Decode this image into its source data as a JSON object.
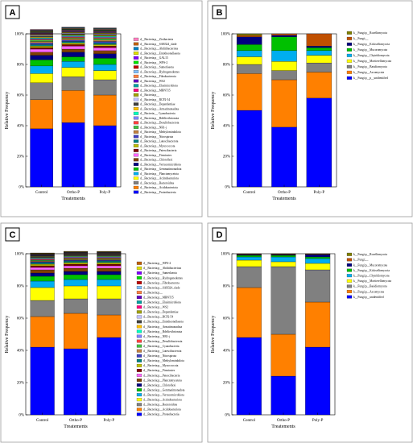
{
  "chart_data": [
    {
      "panel": "A",
      "type": "bar",
      "stacked": true,
      "categories": [
        "Control",
        "Ortho-P",
        "Poly-P"
      ],
      "xlabel": "Treatements",
      "ylabel": "Relative Frequency",
      "ylim": [
        0,
        100
      ],
      "yticks": [
        "0%",
        "20%",
        "40%",
        "60%",
        "80%",
        "100%"
      ],
      "legend_position": "right",
      "series": [
        {
          "name": "d__Bacteria;p__Proteobacteria",
          "color": "#0000ff",
          "values": [
            38,
            42,
            40
          ]
        },
        {
          "name": "d__Bacteria;p__Acidobacteriota",
          "color": "#ff8000",
          "values": [
            19,
            21,
            20
          ]
        },
        {
          "name": "d__Bacteria;p__Bacteroidota",
          "color": "#808080",
          "values": [
            11,
            9,
            10
          ]
        },
        {
          "name": "d__Bacteria;p__Actinobacteriota",
          "color": "#ffff00",
          "values": [
            6,
            6,
            6
          ]
        },
        {
          "name": "d__Bacteria;p__Planctomycetota",
          "color": "#00aeef",
          "values": [
            5,
            4,
            4
          ]
        },
        {
          "name": "d__Bacteria;p__Gemmatimonadota",
          "color": "#00c000",
          "values": [
            4,
            3,
            4
          ]
        },
        {
          "name": "d__Bacteria;p__Verrucomicrobiota",
          "color": "#000080",
          "values": [
            3,
            3,
            3
          ]
        },
        {
          "name": "d__Bacteria;p__Chloroflexi",
          "color": "#804000",
          "values": [
            2,
            2,
            2
          ]
        },
        {
          "name": "d__Bacteria;p__Firmicutes",
          "color": "#ff66ff",
          "values": [
            2,
            2,
            2
          ]
        },
        {
          "name": "d__Bacteria;p__Patescibacteria",
          "color": "#800000",
          "values": [
            1,
            1,
            1
          ]
        },
        {
          "name": "d__Bacteria;p__Myxococcota",
          "color": "#c0c000",
          "values": [
            1,
            1,
            1
          ]
        },
        {
          "name": "d__Bacteria;p__Latescibacterota",
          "color": "#008080",
          "values": [
            1,
            1,
            1
          ]
        },
        {
          "name": "d__Bacteria;p__Nitrospirota",
          "color": "#4040c0",
          "values": [
            1,
            1,
            1
          ]
        },
        {
          "name": "d__Bacteria;p__Methylomirabilota",
          "color": "#c08040",
          "values": [
            1,
            1,
            1
          ]
        },
        {
          "name": "d__Bacteria;p__NB1-j",
          "color": "#40c040",
          "values": [
            1,
            0.5,
            1
          ]
        },
        {
          "name": "d__Bacteria;p__Desulfobacterota",
          "color": "#ff4040",
          "values": [
            0.5,
            0.5,
            0.5
          ]
        },
        {
          "name": "d__Bacteria;p__Bdellovibrionota",
          "color": "#8080ff",
          "values": [
            0.5,
            0.5,
            0.5
          ]
        },
        {
          "name": "d__Bacteria;__ Cyanobacteria",
          "color": "#00ffc0",
          "values": [
            0.5,
            0.5,
            0.5
          ]
        },
        {
          "name": "d__Bacteria;p__Armatimonadota",
          "color": "#ffc000",
          "values": [
            0.5,
            0.5,
            0.5
          ]
        },
        {
          "name": "d__Bacteria;p__Dependentiae",
          "color": "#404040",
          "values": [
            0.5,
            0.5,
            0.5
          ]
        },
        {
          "name": "d__Bacteria;p__RCP2-54",
          "color": "#c0c0ff",
          "values": [
            0.5,
            0.5,
            0.5
          ]
        },
        {
          "name": "d__Bacteria;p__",
          "color": "#a0a000",
          "values": [
            0.5,
            0.5,
            0.5
          ]
        },
        {
          "name": "d__Bacteria;p__MBNT15",
          "color": "#ff0080",
          "values": [
            0.3,
            0.3,
            0.3
          ]
        },
        {
          "name": "d__Bacteria;p__Elusimicrobiota",
          "color": "#00a0a0",
          "values": [
            0.3,
            0.3,
            0.3
          ]
        },
        {
          "name": "d__Bacteria;p__WS2",
          "color": "#6000c0",
          "values": [
            0.3,
            0.3,
            0.3
          ]
        },
        {
          "name": "d__Bacteria;p__Fibrobacterota",
          "color": "#ff8040",
          "values": [
            0.3,
            0.3,
            0.3
          ]
        },
        {
          "name": "d__Bacteria;p__Hydrogenedentes",
          "color": "#80c0ff",
          "values": [
            0.3,
            0.3,
            0.3
          ]
        },
        {
          "name": "d__Bacteria;p__Sumerlaeota",
          "color": "#c00000",
          "values": [
            0.3,
            0.3,
            0.3
          ]
        },
        {
          "name": "d__Bacteria;p__WPS-2",
          "color": "#00e000",
          "values": [
            0.3,
            0.3,
            0.3
          ]
        },
        {
          "name": "d__Bacteria;p__GAL15",
          "color": "#8000ff",
          "values": [
            0.3,
            0.3,
            0.3
          ]
        },
        {
          "name": "d__Bacteria;p__Entotheonellaeota",
          "color": "#e0e000",
          "values": [
            0.3,
            0.3,
            0.3
          ]
        },
        {
          "name": "d__Bacteria;p__Abditibacteriota",
          "color": "#0080c0",
          "values": [
            0.3,
            0.3,
            0.3
          ]
        },
        {
          "name": "d__Bacteria;p__SAR324_clade",
          "color": "#c06000",
          "values": [
            0.2,
            0.2,
            0.2
          ]
        },
        {
          "name": "d__Bacteria;p__Zixibacteria",
          "color": "#ff80c0",
          "values": [
            0.2,
            0.2,
            0.2
          ]
        }
      ]
    },
    {
      "panel": "B",
      "type": "bar",
      "stacked": true,
      "categories": [
        "Control",
        "Ortho-P",
        "Poly-P"
      ],
      "xlabel": "Treatements",
      "ylabel": "Relative Frequency",
      "ylim": [
        0,
        100
      ],
      "yticks": [
        "0%",
        "20%",
        "40%",
        "60%",
        "80%",
        "100%"
      ],
      "legend_position": "right",
      "series": [
        {
          "name": "k__Fungi;p__p__unidentified",
          "color": "#0000ff",
          "values": [
            50,
            39,
            58
          ]
        },
        {
          "name": "k__Fungi;p__Ascomycota",
          "color": "#ff8000",
          "values": [
            24,
            31,
            17
          ]
        },
        {
          "name": "k__Fungi;p__Basidiomycota",
          "color": "#808080",
          "values": [
            6,
            6,
            6
          ]
        },
        {
          "name": "k__Fungi;p__Mortierellomycota",
          "color": "#ffff00",
          "values": [
            5,
            6,
            5
          ]
        },
        {
          "name": "k__Fungi;p__Chytridiomycota",
          "color": "#00aeef",
          "values": [
            4,
            7,
            3
          ]
        },
        {
          "name": "k__Fungi;p__Mucoromycota",
          "color": "#00c000",
          "values": [
            4,
            9,
            2
          ]
        },
        {
          "name": "k__Fungi;p__Kickxellomycota",
          "color": "#000080",
          "values": [
            5,
            1,
            1
          ]
        },
        {
          "name": "k__Fungi;__",
          "color": "#c05000",
          "values": [
            1,
            1,
            8
          ]
        },
        {
          "name": "k__Fungi;p__Rozellomycota",
          "color": "#808000",
          "values": [
            1,
            0,
            0
          ]
        }
      ]
    },
    {
      "panel": "C",
      "type": "bar",
      "stacked": true,
      "categories": [
        "Control",
        "Ortho-P",
        "Poly-P"
      ],
      "xlabel": "Treatements",
      "ylabel": "Relative Frequency",
      "ylim": [
        0,
        100
      ],
      "yticks": [
        "0%",
        "20%",
        "40%",
        "60%",
        "80%",
        "100%"
      ],
      "legend_position": "right",
      "series": [
        {
          "name": "d__Bacteria;p__Proteobacteria",
          "color": "#0000ff",
          "values": [
            42,
            41,
            48
          ]
        },
        {
          "name": "d__Bacteria;p__Acidobacteriota",
          "color": "#ff8000",
          "values": [
            19,
            22,
            14
          ]
        },
        {
          "name": "d__Bacteria;p__Bacteroidota",
          "color": "#808080",
          "values": [
            10,
            9,
            10
          ]
        },
        {
          "name": "d__Bacteria;p__Actinobacteriota",
          "color": "#ffff00",
          "values": [
            8,
            8,
            8
          ]
        },
        {
          "name": "d__Bacteria;p__Verrucomicrobiota",
          "color": "#00aeef",
          "values": [
            4,
            4,
            4
          ]
        },
        {
          "name": "d__Bacteria;p__Gemmatimonadota",
          "color": "#00c000",
          "values": [
            3,
            3,
            3
          ]
        },
        {
          "name": "d__Bacteria;p__Chloroflexi",
          "color": "#000080",
          "values": [
            2,
            2,
            2
          ]
        },
        {
          "name": "d__Bacteria;p__Planctomycetota",
          "color": "#804000",
          "values": [
            2,
            2,
            2
          ]
        },
        {
          "name": "d__Bacteria;p__Patescibacteria",
          "color": "#ff66ff",
          "values": [
            1.5,
            1.5,
            1.5
          ]
        },
        {
          "name": "d__Bacteria;p__Firmicutes",
          "color": "#800000",
          "values": [
            1,
            1,
            1
          ]
        },
        {
          "name": "d__Bacteria;p__Myxococcota",
          "color": "#c0c000",
          "values": [
            1,
            1,
            1
          ]
        },
        {
          "name": "d__Bacteria;p__Methylomirabilota",
          "color": "#008080",
          "values": [
            1,
            1,
            1
          ]
        },
        {
          "name": "d__Bacteria;p__Nitrospirota",
          "color": "#4040c0",
          "values": [
            0.5,
            0.5,
            0.5
          ]
        },
        {
          "name": "d__Bacteria;p__Latescibacterota",
          "color": "#c08040",
          "values": [
            0.5,
            0.5,
            0.5
          ]
        },
        {
          "name": "d__Bacteria;p__Cyanobacteria",
          "color": "#40c040",
          "values": [
            0.5,
            0.5,
            0.5
          ]
        },
        {
          "name": "d__Bacteria;p__Desulfobacterota",
          "color": "#ff4040",
          "values": [
            0.5,
            0.5,
            0.5
          ]
        },
        {
          "name": "d__Bacteria;p__NB1-j",
          "color": "#8080ff",
          "values": [
            0.5,
            0.5,
            0.5
          ]
        },
        {
          "name": "d__Bacteria;p__Bdellovibrionota",
          "color": "#00ffc0",
          "values": [
            0.3,
            0.3,
            0.3
          ]
        },
        {
          "name": "d__Bacteria;p__Armatimonadota",
          "color": "#ffc000",
          "values": [
            0.3,
            0.3,
            0.3
          ]
        },
        {
          "name": "d__Bacteria;p__Entotheonellaeota",
          "color": "#404040",
          "values": [
            0.3,
            0.3,
            0.3
          ]
        },
        {
          "name": "d__Bacteria;p__RCP2-54",
          "color": "#c0c0ff",
          "values": [
            0.3,
            0.3,
            0.3
          ]
        },
        {
          "name": "d__Bacteria;p__Dependentiae",
          "color": "#a0a000",
          "values": [
            0.3,
            0.3,
            0.3
          ]
        },
        {
          "name": "d__Bacteria;p__WS2",
          "color": "#ff0080",
          "values": [
            0.2,
            0.2,
            0.2
          ]
        },
        {
          "name": "d__Bacteria;p__Elusimicrobiota",
          "color": "#00a0a0",
          "values": [
            0.2,
            0.2,
            0.2
          ]
        },
        {
          "name": "d__Bacteria;p__MBNT15",
          "color": "#6000c0",
          "values": [
            0.2,
            0.2,
            0.2
          ]
        },
        {
          "name": "d__Bacteria;p__",
          "color": "#ff8040",
          "values": [
            0.2,
            0.2,
            0.2
          ]
        },
        {
          "name": "d__Bacteria;p__SAR324_clade",
          "color": "#80c0ff",
          "values": [
            0.2,
            0.2,
            0.2
          ]
        },
        {
          "name": "d__Bacteria;p__Fibrobacterota",
          "color": "#c00000",
          "values": [
            0.2,
            0.2,
            0.2
          ]
        },
        {
          "name": "d__Bacteria;p__Hydrogenedentes",
          "color": "#00e000",
          "values": [
            0.2,
            0.2,
            0.2
          ]
        },
        {
          "name": "d__Bacteria;p__Sumerlaeota",
          "color": "#8000ff",
          "values": [
            0.2,
            0.2,
            0.2
          ]
        },
        {
          "name": "d__Bacteria;p__Abditibacteriota",
          "color": "#e0e000",
          "values": [
            0.2,
            0.2,
            0.2
          ]
        },
        {
          "name": "d__Bacteria;p__WPS-2",
          "color": "#c06000",
          "values": [
            0.2,
            0.2,
            0.2
          ]
        }
      ]
    },
    {
      "panel": "D",
      "type": "bar",
      "stacked": true,
      "categories": [
        "Control",
        "Ortho-P",
        "Poly-P"
      ],
      "xlabel": "Treatements",
      "ylabel": "Relative Frequency",
      "ylim": [
        0,
        100
      ],
      "yticks": [
        "0%",
        "20%",
        "40%",
        "60%",
        "80%",
        "100%"
      ],
      "legend_position": "right",
      "series": [
        {
          "name": "k__Fungi;p__unidentified",
          "color": "#0000ff",
          "values": [
            48,
            24,
            42
          ]
        },
        {
          "name": "k__Fungi;p__Ascomycota",
          "color": "#ff8000",
          "values": [
            31,
            26,
            28
          ]
        },
        {
          "name": "k__Fungi;p__Basidiomycota",
          "color": "#808080",
          "values": [
            13,
            42,
            20
          ]
        },
        {
          "name": "k__Fungi;p__Mortierellomycota",
          "color": "#ffff00",
          "values": [
            4,
            3,
            4
          ]
        },
        {
          "name": "k__Fungi;p__Chytridiomycota",
          "color": "#00aeef",
          "values": [
            2,
            3,
            3
          ]
        },
        {
          "name": "k__Fungi;p__Kickxellomycota",
          "color": "#00c000",
          "values": [
            1,
            1,
            1
          ]
        },
        {
          "name": "k__Fungi;p__Mucoromycota",
          "color": "#000080",
          "values": [
            0.5,
            0.5,
            1.5
          ]
        },
        {
          "name": "k__Fungi;__",
          "color": "#c05000",
          "values": [
            0.3,
            0.3,
            0.3
          ]
        },
        {
          "name": "k__Fungi;p__Rozellomycota",
          "color": "#808000",
          "values": [
            0.2,
            0.2,
            0.2
          ]
        }
      ]
    }
  ]
}
